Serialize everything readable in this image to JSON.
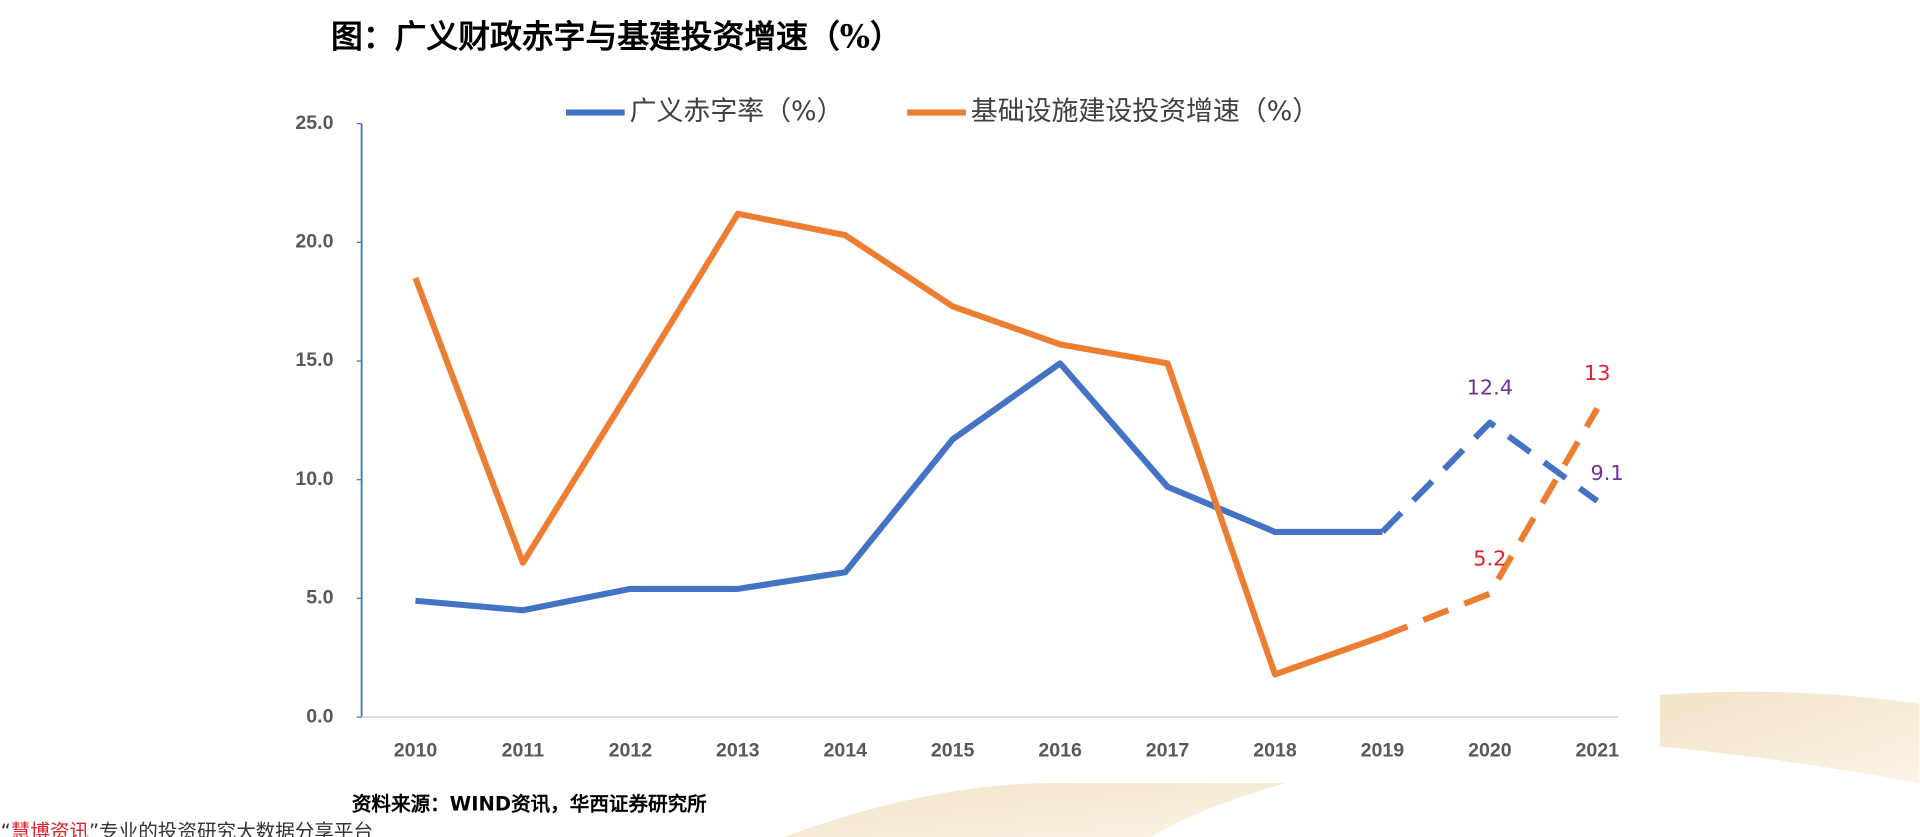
{
  "chart_data": {
    "type": "line",
    "title": "图：广义财政赤字与基建投资增速（%）",
    "categories": [
      "2010",
      "2011",
      "2012",
      "2013",
      "2014",
      "2015",
      "2016",
      "2017",
      "2018",
      "2019",
      "2020",
      "2021"
    ],
    "series": [
      {
        "name": "广义赤字率（%）",
        "color": "#4472c4",
        "label_color": "#7030a0",
        "values": [
          4.9,
          4.5,
          5.4,
          5.4,
          6.1,
          11.7,
          14.9,
          9.7,
          7.8,
          7.8,
          12.4,
          9.1
        ],
        "value_labels": [
          null,
          null,
          null,
          null,
          null,
          null,
          null,
          null,
          null,
          null,
          "12.4",
          "9.1"
        ]
      },
      {
        "name": "基础设施建设投资增速（%）",
        "color": "#ed7d31",
        "label_color": "#e0202c",
        "values": [
          18.5,
          6.5,
          13.8,
          21.2,
          20.3,
          17.3,
          15.7,
          14.9,
          1.8,
          3.4,
          5.2,
          13
        ],
        "value_labels": [
          null,
          null,
          null,
          null,
          null,
          null,
          null,
          null,
          null,
          null,
          "5.2",
          "13"
        ]
      }
    ],
    "dashed_from": 9,
    "ylim": [
      0,
      25
    ],
    "yticks": [
      {
        "value": 0,
        "label": "0.0"
      },
      {
        "value": 5,
        "label": "5.0"
      },
      {
        "value": 10,
        "label": "10.0"
      },
      {
        "value": 15,
        "label": "15.0"
      },
      {
        "value": 20,
        "label": "20.0"
      },
      {
        "value": 25,
        "label": "25.0"
      }
    ],
    "legend": "top"
  },
  "source": "资料来源：WIND资讯，华西证券研究所",
  "footer": {
    "quote_open": "“",
    "brand": "慧博资讯",
    "rest": "”专业的投资研究大数据分享平台"
  }
}
